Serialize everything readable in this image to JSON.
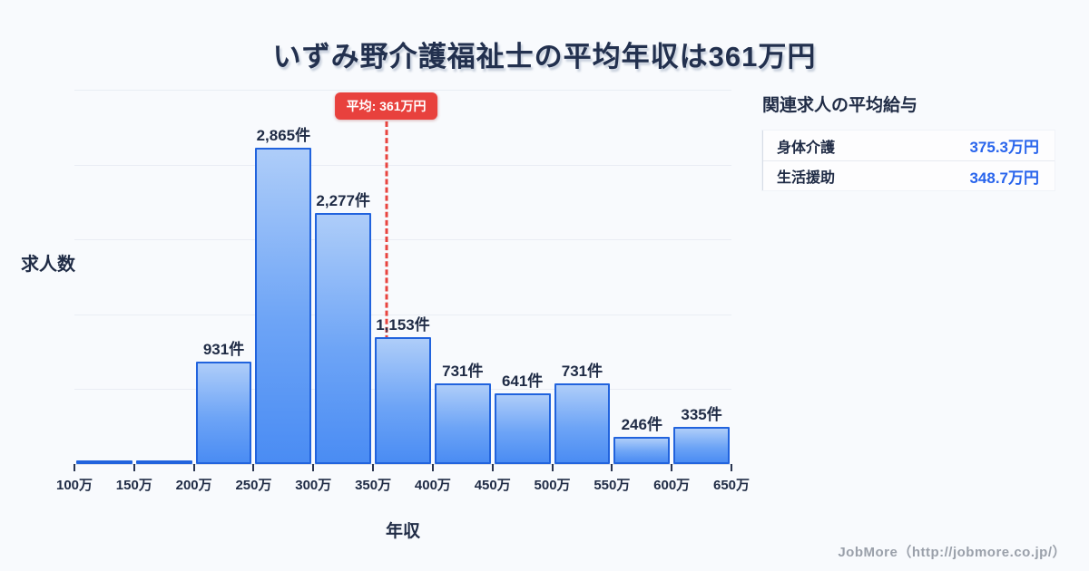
{
  "title": "いずみ野介護福祉士の平均年収は361万円",
  "chart_data": {
    "type": "bar",
    "subtype": "histogram",
    "title": "いずみ野介護福祉士の平均年収は361万円",
    "xlabel": "年収",
    "ylabel": "求人数",
    "x_tick_labels": [
      "100万",
      "150万",
      "200万",
      "250万",
      "300万",
      "350万",
      "400万",
      "450万",
      "500万",
      "550万",
      "600万",
      "650万"
    ],
    "bin_edges_man_yen": [
      100,
      150,
      200,
      250,
      300,
      350,
      400,
      450,
      500,
      550,
      600,
      650
    ],
    "values": [
      30,
      30,
      931,
      2865,
      2277,
      1153,
      731,
      641,
      731,
      246,
      335
    ],
    "bar_labels": [
      "",
      "",
      "931件",
      "2,865件",
      "2,277件",
      "1,153件",
      "731件",
      "641件",
      "731件",
      "246件",
      "335件"
    ],
    "ylim": [
      0,
      3400
    ],
    "x_range": [
      100,
      650
    ],
    "grid": true,
    "legend_position": "none",
    "average": {
      "value": 361,
      "label": "平均: 361万円"
    }
  },
  "side_panel": {
    "heading": "関連求人の平均給与",
    "rows": [
      {
        "label": "身体介護",
        "value": "375.3万円"
      },
      {
        "label": "生活援助",
        "value": "348.7万円"
      }
    ]
  },
  "footer": {
    "credit": "JobMore（http://jobmore.co.jp/）"
  },
  "colors": {
    "background": "#f8fafd",
    "bar_fill_top": "#aecdf9",
    "bar_fill_bottom": "#4a8cf3",
    "bar_border": "#2163dd",
    "average_accent": "#e8413d",
    "text_navy": "#1f2b45",
    "panel_value_blue": "#2864ec",
    "gridline": "#e9edf4",
    "footer_gray": "#9aa0aa"
  }
}
